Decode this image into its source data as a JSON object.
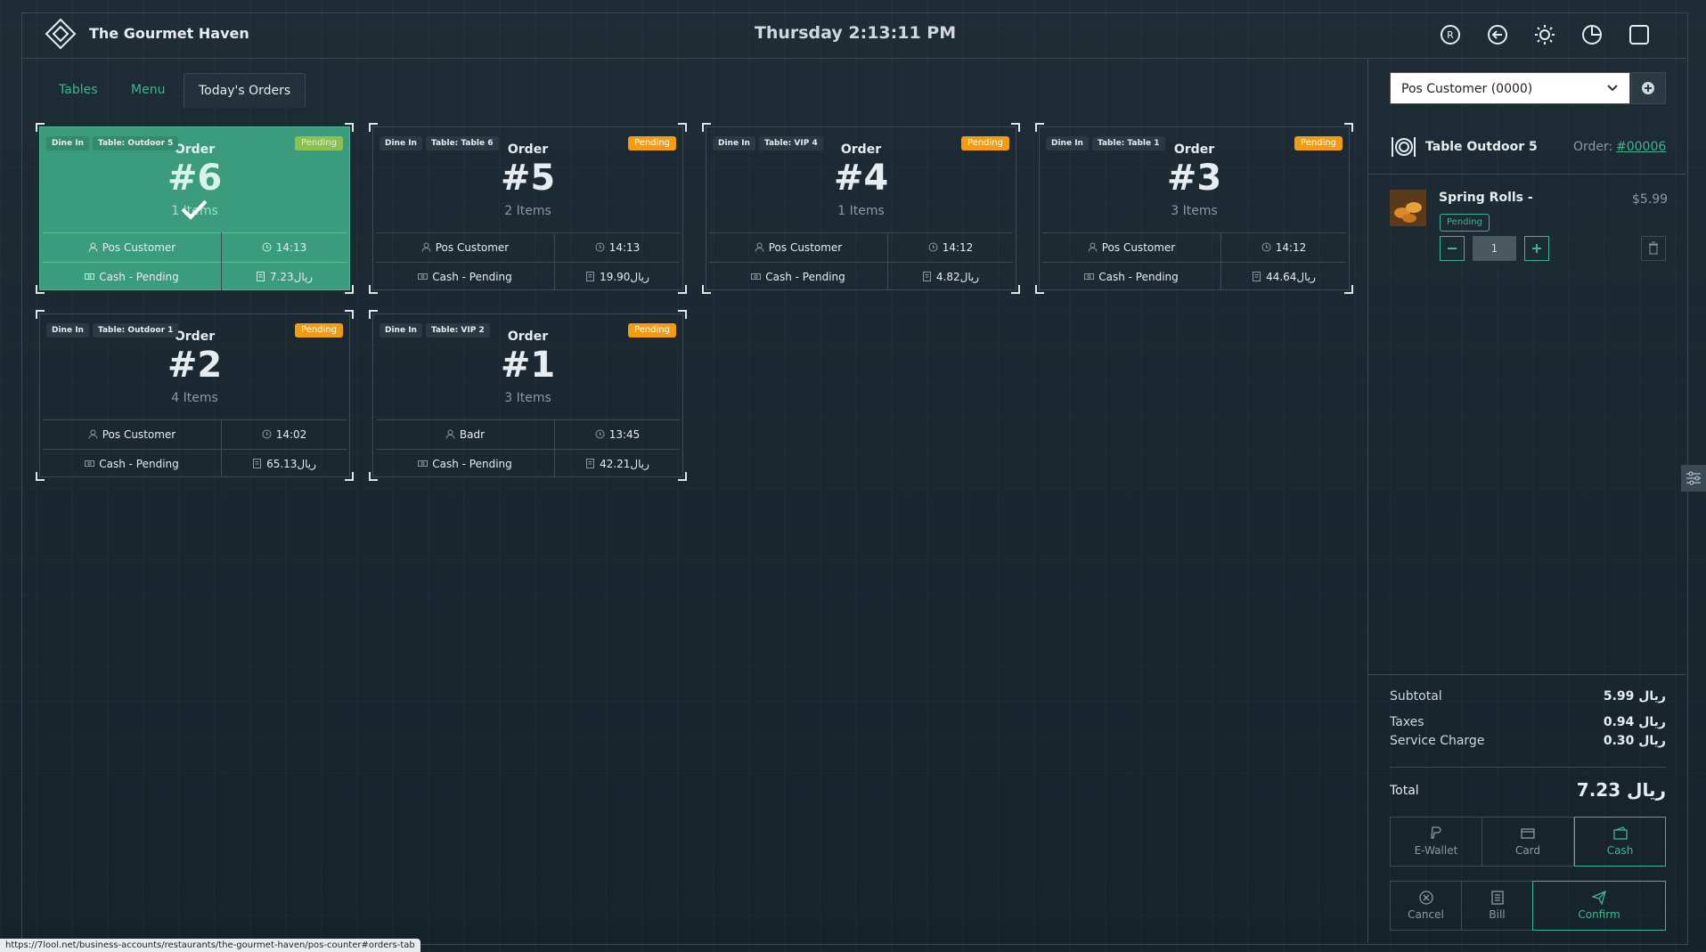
{
  "header": {
    "brand": "The Gourmet Haven",
    "datetime": "Thursday 2:13:11 PM"
  },
  "tabs": [
    "Tables",
    "Menu",
    "Today's Orders"
  ],
  "orders": [
    {
      "type": "Dine In",
      "table": "Table: Outdoor 5",
      "status": "Pending",
      "label": "Order",
      "number": "#6",
      "items": "1 Items",
      "customer": "Pos Customer",
      "time": "14:13",
      "payment": "Cash - Pending",
      "total": "7.23ريال"
    },
    {
      "type": "Dine In",
      "table": "Table: Table 6",
      "status": "Pending",
      "label": "Order",
      "number": "#5",
      "items": "2 Items",
      "customer": "Pos Customer",
      "time": "14:13",
      "payment": "Cash - Pending",
      "total": "19.90ريال"
    },
    {
      "type": "Dine In",
      "table": "Table: VIP 4",
      "status": "Pending",
      "label": "Order",
      "number": "#4",
      "items": "1 Items",
      "customer": "Pos Customer",
      "time": "14:12",
      "payment": "Cash - Pending",
      "total": "4.82ريال"
    },
    {
      "type": "Dine In",
      "table": "Table: Table 1",
      "status": "Pending",
      "label": "Order",
      "number": "#3",
      "items": "3 Items",
      "customer": "Pos Customer",
      "time": "14:12",
      "payment": "Cash - Pending",
      "total": "44.64ريال"
    },
    {
      "type": "Dine In",
      "table": "Table: Outdoor 1",
      "status": "Pending",
      "label": "Order",
      "number": "#2",
      "items": "4 Items",
      "customer": "Pos Customer",
      "time": "14:02",
      "payment": "Cash - Pending",
      "total": "65.13ريال"
    },
    {
      "type": "Dine In",
      "table": "Table: VIP 2",
      "status": "Pending",
      "label": "Order",
      "number": "#1",
      "items": "3 Items",
      "customer": "Badr",
      "time": "13:45",
      "payment": "Cash - Pending",
      "total": "42.21ريال"
    }
  ],
  "cart": {
    "customer_select": "Pos Customer (0000)",
    "table": "Table Outdoor 5",
    "order_label": "Order:",
    "order_no": "#00006",
    "item": {
      "name": "Spring Rolls -",
      "status": "Pending",
      "quantity": "1",
      "price": "$5.99"
    },
    "summary": [
      {
        "label": "Subtotal",
        "value": "5.99 ريال"
      },
      {
        "label": "Taxes",
        "value": "0.94 ريال"
      },
      {
        "label": "Service Charge",
        "value": "0.30 ريال"
      }
    ],
    "total_label": "Total",
    "total_value": "7.23 ريال",
    "payments": [
      "E-Wallet",
      "Card",
      "Cash"
    ],
    "actions": [
      "Cancel",
      "Bill",
      "Confirm"
    ]
  },
  "status_bar": "https://7lool.net/business-accounts/restaurants/the-gourmet-haven/pos-counter#orders-tab"
}
